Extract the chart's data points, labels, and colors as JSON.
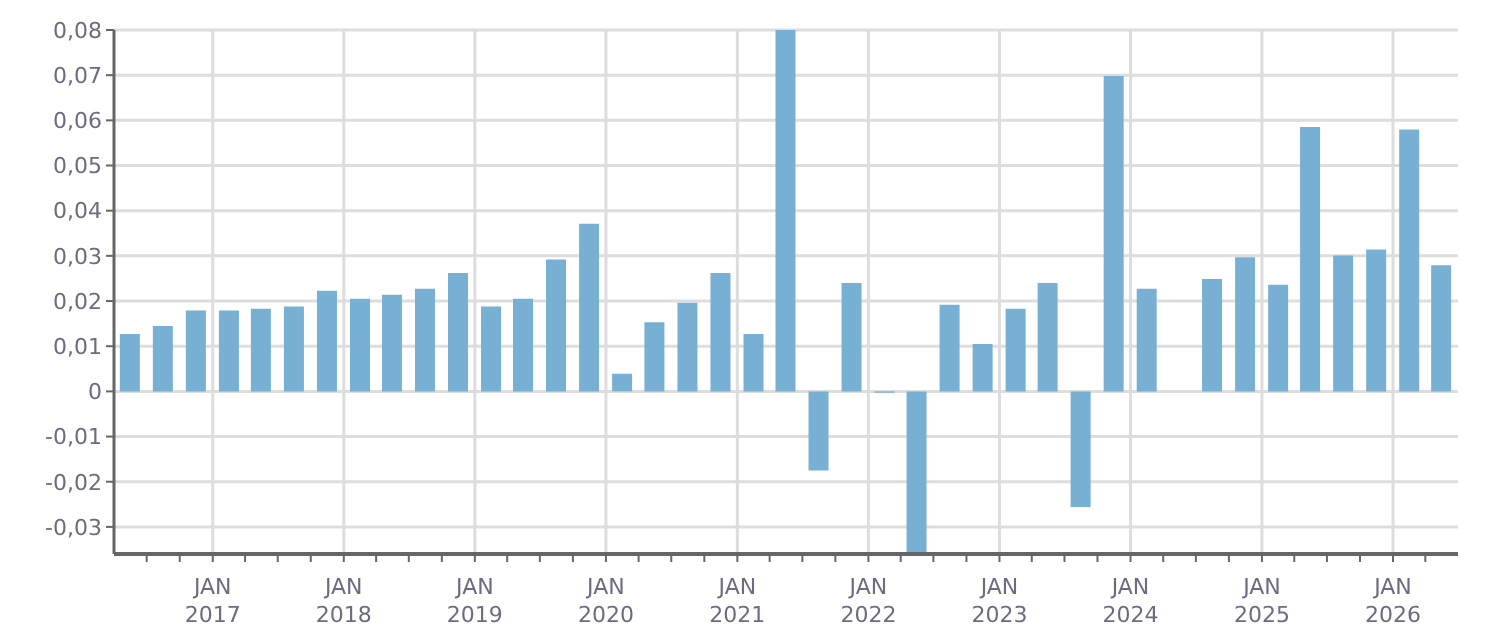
{
  "chart_data": {
    "type": "bar",
    "x": [
      "2016-05-15",
      "2016-08-15",
      "2016-11-15",
      "2017-02-15",
      "2017-05-15",
      "2017-08-15",
      "2017-11-15",
      "2018-02-15",
      "2018-05-15",
      "2018-08-15",
      "2018-11-15",
      "2019-02-15",
      "2019-05-15",
      "2019-08-15",
      "2019-11-15",
      "2020-02-15",
      "2020-05-15",
      "2020-08-15",
      "2020-11-15",
      "2021-02-15",
      "2021-05-15",
      "2021-08-15",
      "2021-11-15",
      "2022-02-15",
      "2022-05-15",
      "2022-08-15",
      "2022-11-15",
      "2023-02-15",
      "2023-05-15",
      "2023-08-15",
      "2023-11-15",
      "2024-02-15",
      "2024-05-15",
      "2024-08-15",
      "2024-11-15",
      "2025-02-15",
      "2025-05-15",
      "2025-08-15",
      "2025-11-15",
      "2026-02-15",
      "2026-05-15"
    ],
    "values": [
      0.0127,
      0.0145,
      0.0179,
      0.0179,
      0.0183,
      0.0188,
      0.0223,
      0.0205,
      0.0214,
      0.0227,
      0.0262,
      0.0188,
      0.0205,
      0.0292,
      0.0371,
      0.0039,
      0.0153,
      0.0196,
      0.0262,
      0.0127,
      0.08,
      -0.0175,
      0.024,
      -0.0003,
      -0.036,
      0.0192,
      0.0105,
      0.0183,
      0.024,
      -0.0256,
      0.0698,
      0.0227,
      null,
      0.0249,
      0.0297,
      0.0236,
      0.0585,
      0.0301,
      0.0314,
      0.058,
      0.0279
    ],
    "color": "#77b0d3",
    "xlim": [
      "2016-04-01",
      "2026-07-01"
    ],
    "xticks": [
      {
        "value": "2016-07-01",
        "label": null
      },
      {
        "value": "2016-10-01",
        "label": null
      },
      {
        "value": "2017-01-01",
        "label": "JAN 2017"
      },
      {
        "value": "2017-04-01",
        "label": null
      },
      {
        "value": "2017-07-01",
        "label": null
      },
      {
        "value": "2017-10-01",
        "label": null
      },
      {
        "value": "2018-01-01",
        "label": "JAN 2018"
      },
      {
        "value": "2018-04-01",
        "label": null
      },
      {
        "value": "2018-07-01",
        "label": null
      },
      {
        "value": "2018-10-01",
        "label": null
      },
      {
        "value": "2019-01-01",
        "label": "JAN 2019"
      },
      {
        "value": "2019-04-01",
        "label": null
      },
      {
        "value": "2019-07-01",
        "label": null
      },
      {
        "value": "2019-10-01",
        "label": null
      },
      {
        "value": "2020-01-01",
        "label": "JAN 2020"
      },
      {
        "value": "2020-04-01",
        "label": null
      },
      {
        "value": "2020-07-01",
        "label": null
      },
      {
        "value": "2020-10-01",
        "label": null
      },
      {
        "value": "2021-01-01",
        "label": "JAN 2021"
      },
      {
        "value": "2021-04-01",
        "label": null
      },
      {
        "value": "2021-07-01",
        "label": null
      },
      {
        "value": "2021-10-01",
        "label": null
      },
      {
        "value": "2022-01-01",
        "label": "JAN 2022"
      },
      {
        "value": "2022-04-01",
        "label": null
      },
      {
        "value": "2022-07-01",
        "label": null
      },
      {
        "value": "2022-10-01",
        "label": null
      },
      {
        "value": "2023-01-01",
        "label": "JAN 2023"
      },
      {
        "value": "2023-04-01",
        "label": null
      },
      {
        "value": "2023-07-01",
        "label": null
      },
      {
        "value": "2023-10-01",
        "label": null
      },
      {
        "value": "2024-01-01",
        "label": "JAN 2024"
      },
      {
        "value": "2024-04-01",
        "label": null
      },
      {
        "value": "2024-07-01",
        "label": null
      },
      {
        "value": "2024-10-01",
        "label": null
      },
      {
        "value": "2025-01-01",
        "label": "JAN 2025"
      },
      {
        "value": "2025-04-01",
        "label": null
      },
      {
        "value": "2025-07-01",
        "label": null
      },
      {
        "value": "2025-10-01",
        "label": null
      },
      {
        "value": "2026-01-01",
        "label": "JAN 2026"
      },
      {
        "value": "2026-04-01",
        "label": null
      }
    ],
    "ylim": [
      -0.036,
      0.08
    ],
    "yticks": [
      {
        "value": -0.03,
        "label": "-0,03"
      },
      {
        "value": -0.02,
        "label": "-0,02"
      },
      {
        "value": -0.01,
        "label": "-0,01"
      },
      0,
      {
        "value": 0.01,
        "label": "0,01"
      },
      {
        "value": 0.02,
        "label": "0,02"
      },
      {
        "value": 0.03,
        "label": "0,03"
      },
      {
        "value": 0.04,
        "label": "0,04"
      },
      {
        "value": 0.05,
        "label": "0,05"
      },
      {
        "value": 0.06,
        "label": "0,06"
      },
      {
        "value": 0.07,
        "label": "0,07"
      },
      {
        "value": 0.08,
        "label": "0,08"
      }
    ],
    "grid": true
  }
}
